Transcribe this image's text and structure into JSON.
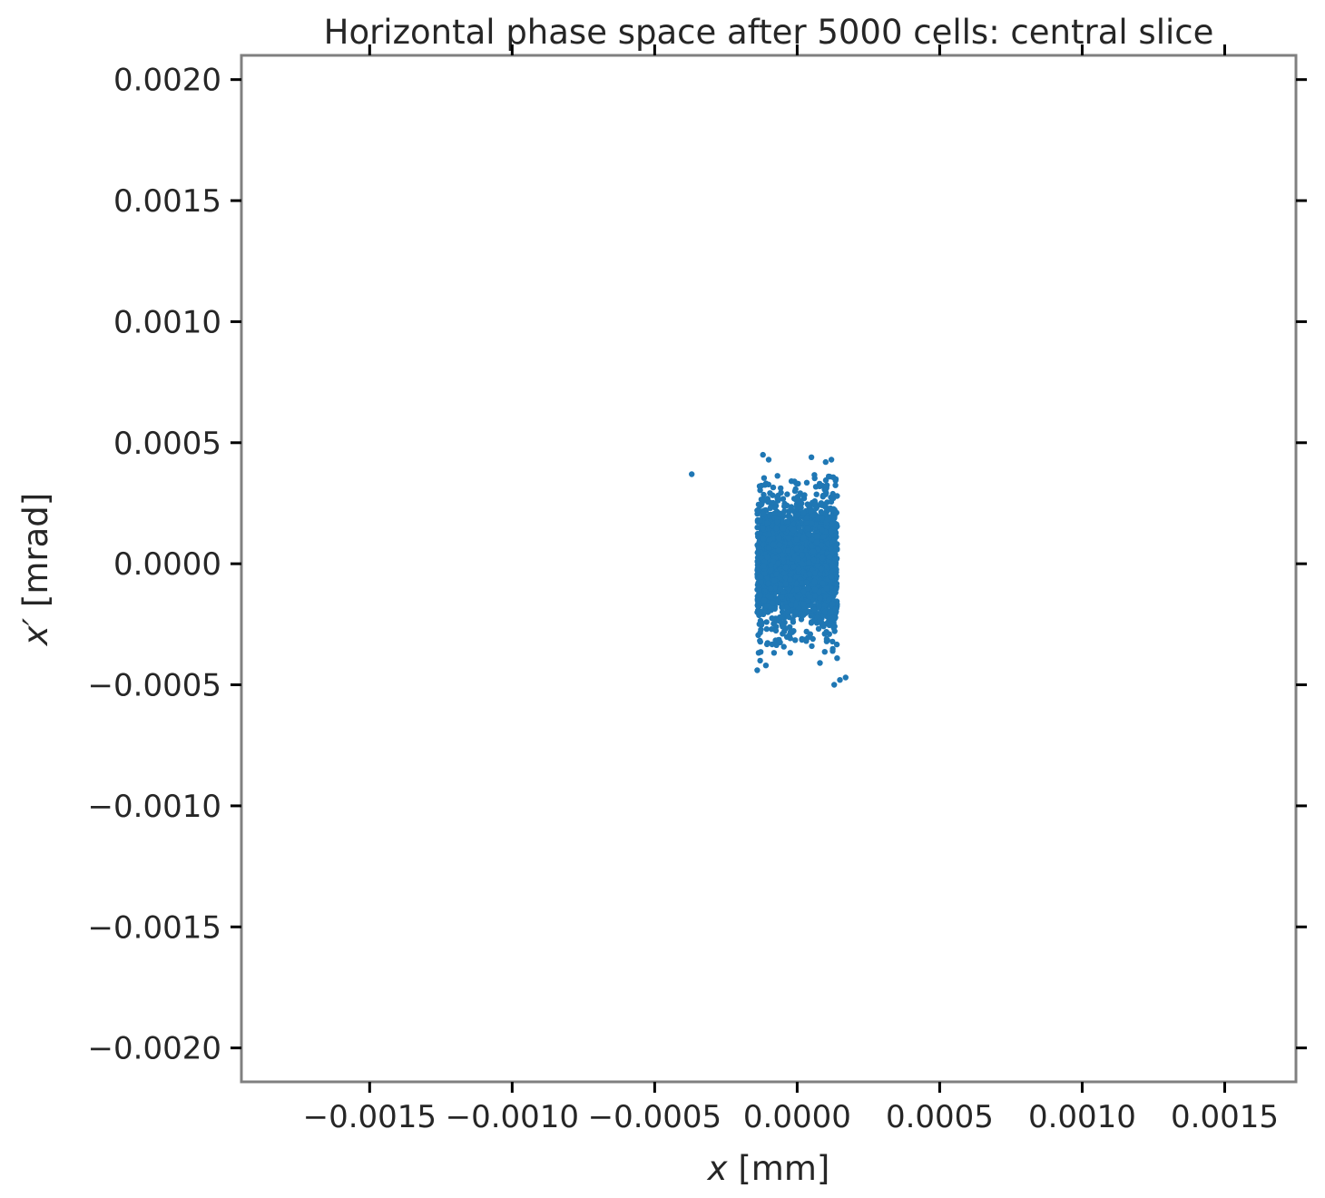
{
  "chart_data": {
    "type": "scatter",
    "title": "Horizontal phase space after 5000 cells: central slice",
    "xlabel_var": "x",
    "xlabel_unit": "[mm]",
    "ylabel_var": "x′",
    "ylabel_unit": "[mrad]",
    "xlim": [
      -0.00195,
      0.00175
    ],
    "ylim": [
      -0.00214,
      0.0021
    ],
    "xticks": [
      -0.0015,
      -0.001,
      -0.0005,
      0.0,
      0.0005,
      0.001,
      0.0015
    ],
    "xtick_labels": [
      "−0.0015",
      "−0.0010",
      "−0.0005",
      "0.0000",
      "0.0005",
      "0.0010",
      "0.0015"
    ],
    "yticks": [
      0.002,
      0.0015,
      0.001,
      0.0005,
      0.0,
      -0.0005,
      -0.001,
      -0.0015,
      -0.002
    ],
    "ytick_labels": [
      "0.0020",
      "0.0015",
      "0.0010",
      "0.0005",
      "0.0000",
      "−0.0005",
      "−0.0010",
      "−0.0015",
      "−0.0020"
    ],
    "marker_color": "#1f77b4",
    "series": [
      {
        "name": "central slice",
        "cluster": {
          "count": 2600,
          "x_min": -0.00014,
          "x_max": 0.00014,
          "y_mean": 0.0,
          "y_std": 0.00013,
          "y_max_abs": 0.00037
        },
        "points": [
          {
            "x": -0.00037,
            "y": 0.00037
          },
          {
            "x": -0.00012,
            "y": 0.00045
          },
          {
            "x": -0.0001,
            "y": 0.00043
          },
          {
            "x": 5e-05,
            "y": 0.00044
          },
          {
            "x": 0.00012,
            "y": 0.00043
          },
          {
            "x": 0.0001,
            "y": 0.00042
          },
          {
            "x": -0.00014,
            "y": 0.00022
          },
          {
            "x": 0.00014,
            "y": 0.00028
          },
          {
            "x": -0.00013,
            "y": -0.0004
          },
          {
            "x": -0.00014,
            "y": -0.00044
          },
          {
            "x": -0.00011,
            "y": -0.00042
          },
          {
            "x": 8e-05,
            "y": -0.00041
          },
          {
            "x": 0.00014,
            "y": -0.00039
          },
          {
            "x": 0.00017,
            "y": -0.00047
          },
          {
            "x": 0.00013,
            "y": -0.0005
          },
          {
            "x": 0.00015,
            "y": -0.00048
          }
        ]
      }
    ]
  }
}
